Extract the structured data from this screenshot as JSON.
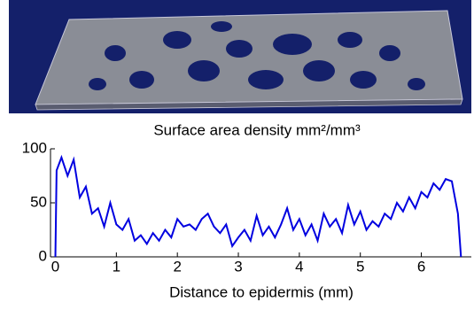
{
  "chart_data": {
    "type": "line",
    "title": "Surface area density  mm²/mm³",
    "x_label": "Distance to epidermis (mm)",
    "x": [
      0,
      0.02,
      0.1,
      0.2,
      0.3,
      0.4,
      0.5,
      0.6,
      0.7,
      0.8,
      0.9,
      1.0,
      1.1,
      1.2,
      1.3,
      1.4,
      1.5,
      1.6,
      1.7,
      1.8,
      1.9,
      2.0,
      2.1,
      2.2,
      2.3,
      2.4,
      2.5,
      2.6,
      2.7,
      2.8,
      2.9,
      3.0,
      3.1,
      3.2,
      3.3,
      3.4,
      3.5,
      3.6,
      3.7,
      3.8,
      3.9,
      4.0,
      4.1,
      4.2,
      4.3,
      4.4,
      4.5,
      4.6,
      4.7,
      4.8,
      4.9,
      5.0,
      5.1,
      5.2,
      5.3,
      5.4,
      5.5,
      5.6,
      5.7,
      5.8,
      5.9,
      6.0,
      6.1,
      6.2,
      6.3,
      6.4,
      6.5,
      6.6,
      6.65
    ],
    "series": [
      {
        "color": "#0000e0",
        "values": [
          0,
          80,
          92,
          75,
          90,
          55,
          65,
          40,
          45,
          28,
          50,
          30,
          25,
          35,
          15,
          20,
          12,
          22,
          15,
          25,
          18,
          35,
          28,
          30,
          25,
          35,
          40,
          28,
          22,
          30,
          10,
          18,
          25,
          15,
          38,
          20,
          28,
          18,
          30,
          45,
          25,
          35,
          20,
          30,
          15,
          40,
          28,
          35,
          22,
          48,
          30,
          42,
          25,
          33,
          28,
          40,
          35,
          50,
          42,
          55,
          45,
          60,
          55,
          68,
          62,
          72,
          70,
          40,
          0
        ]
      }
    ],
    "xlim": [
      -0.08,
      6.82
    ],
    "xticks": [
      0,
      1,
      2,
      3,
      4,
      5,
      6
    ],
    "ylim": [
      0,
      100
    ],
    "yticks": [
      0,
      50,
      100
    ]
  }
}
